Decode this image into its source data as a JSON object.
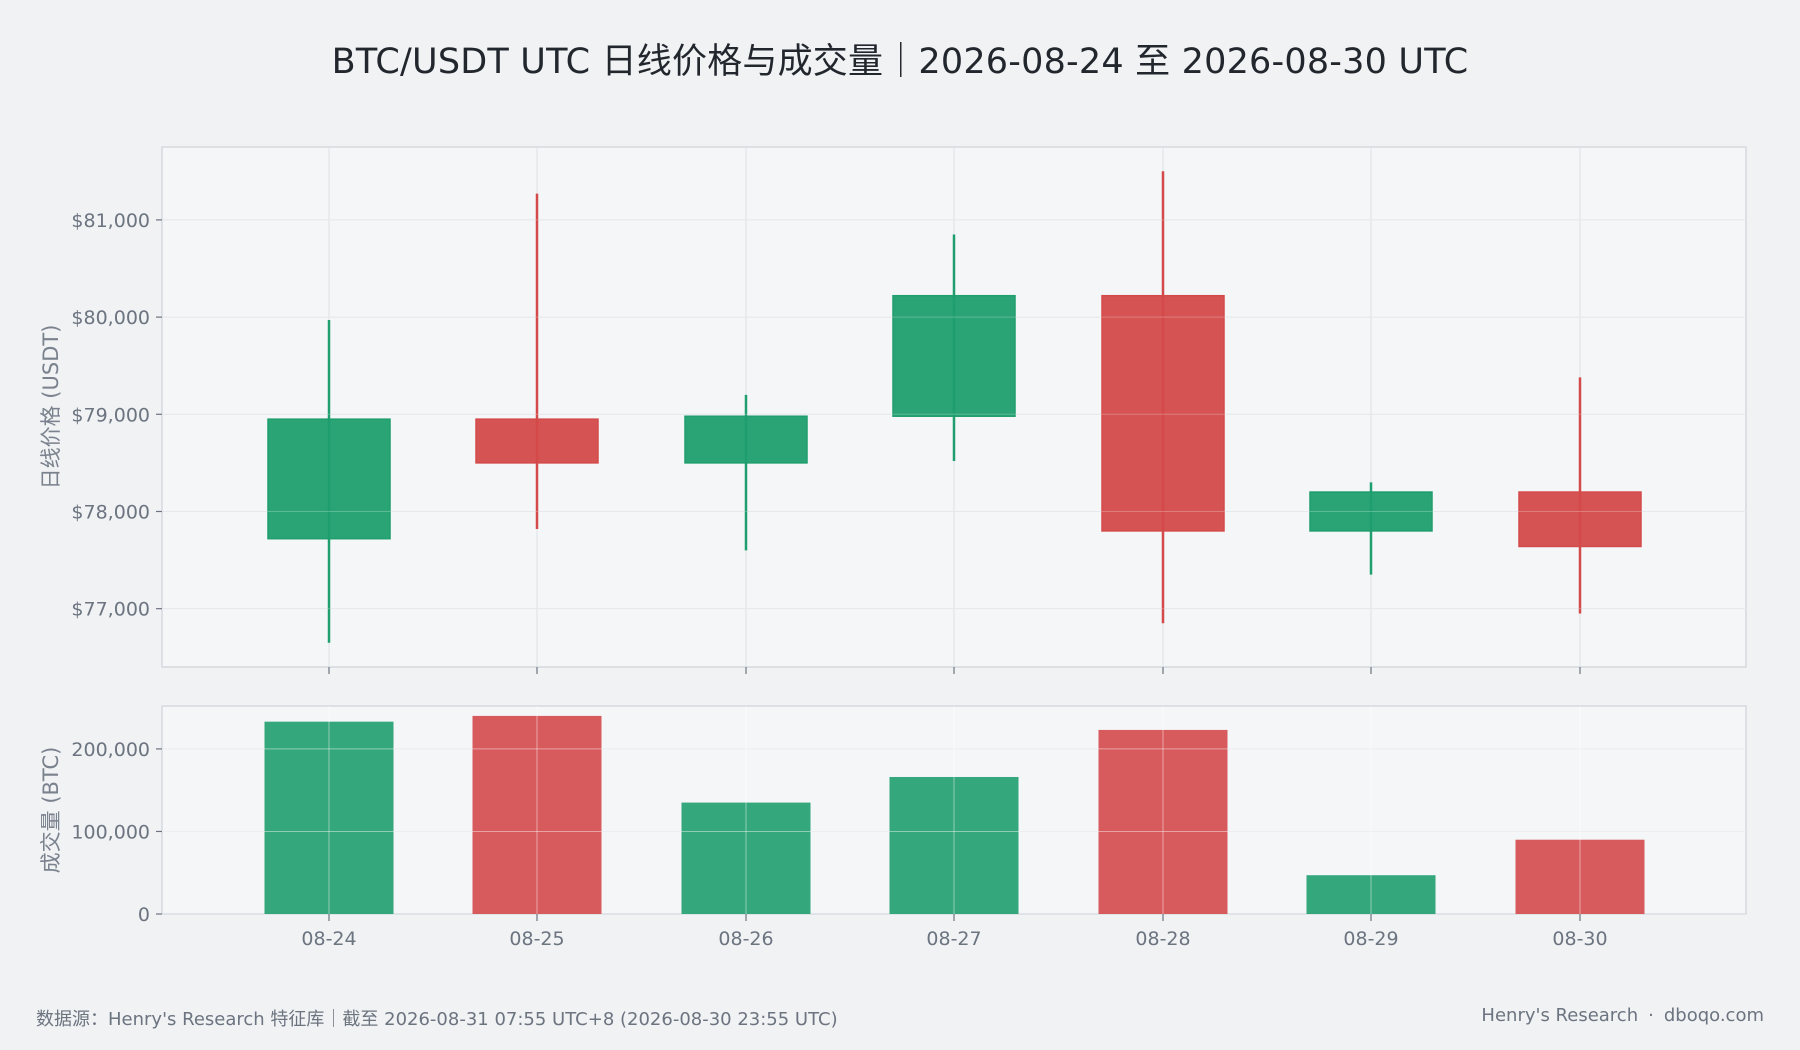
{
  "title": "BTC/USDT UTC 日线价格与成交量｜2026-08-24 至 2026-08-30 UTC",
  "footer": {
    "source": "数据源：Henry's Research 特征库｜截至 2026-08-31 07:55 UTC+8 (2026-08-30 23:55 UTC)",
    "brand": "Henry's Research",
    "separator": "·",
    "site": "dboqo.com"
  },
  "colors": {
    "up": "#1f9e6e",
    "down": "#d44a4a",
    "panel_bg": "#f4f6f8",
    "grid": "#dde1e6",
    "border": "#d5d9de"
  },
  "chart_data": [
    {
      "type": "candlestick",
      "ylabel": "日线价格 (USDT)",
      "ylim": [
        76400,
        81750
      ],
      "yticks": [
        77000,
        78000,
        79000,
        80000,
        81000
      ],
      "ytick_labels": [
        "$77,000",
        "$78,000",
        "$79,000",
        "$80,000",
        "$81,000"
      ],
      "grid": true,
      "categories": [
        "08-24",
        "08-25",
        "08-26",
        "08-27",
        "08-28",
        "08-29",
        "08-30"
      ],
      "open": [
        77720,
        78950,
        78500,
        78980,
        80220,
        77800,
        78200
      ],
      "high": [
        79970,
        81270,
        79200,
        80850,
        81500,
        78300,
        79380
      ],
      "low": [
        76650,
        77820,
        77600,
        78520,
        76850,
        77350,
        76950
      ],
      "close": [
        78950,
        78500,
        78980,
        80220,
        77800,
        78200,
        77640
      ]
    },
    {
      "type": "bar",
      "ylabel": "成交量 (BTC)",
      "ylim": [
        0,
        252000
      ],
      "yticks": [
        0,
        100000,
        200000
      ],
      "ytick_labels": [
        "0",
        "100,000",
        "200,000"
      ],
      "grid": true,
      "categories": [
        "08-24",
        "08-25",
        "08-26",
        "08-27",
        "08-28",
        "08-29",
        "08-30"
      ],
      "values": [
        233000,
        240000,
        135000,
        166000,
        223000,
        47000,
        90000
      ],
      "direction": [
        "up",
        "down",
        "up",
        "up",
        "down",
        "up",
        "down"
      ]
    }
  ]
}
